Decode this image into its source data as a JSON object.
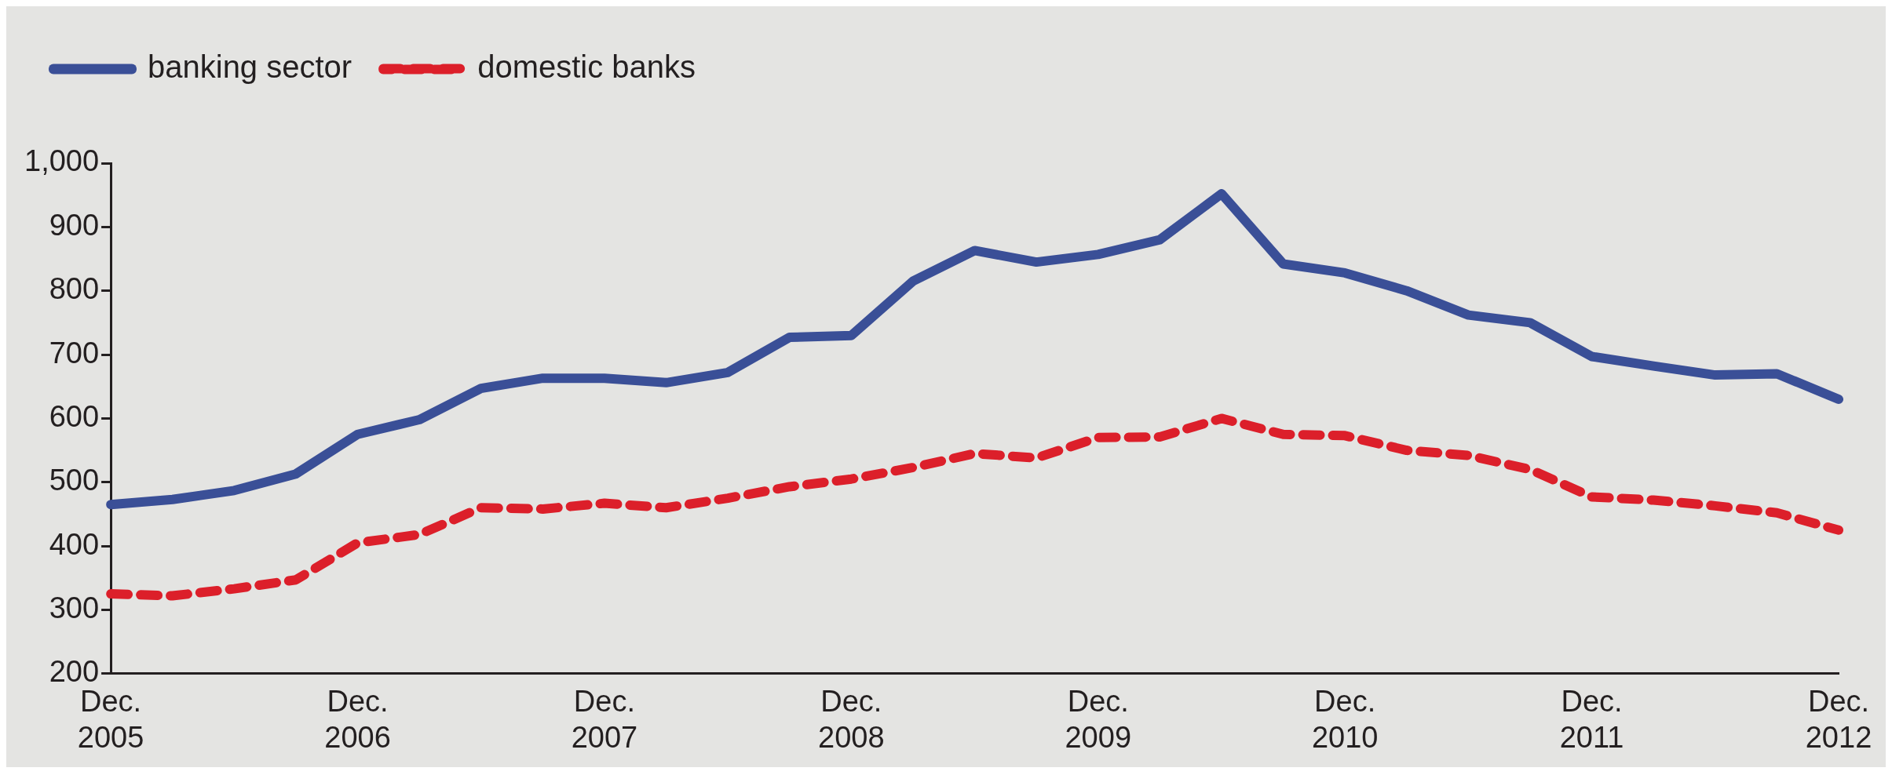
{
  "chart_data": {
    "type": "line",
    "categories": [
      "Dec. 2005",
      null,
      null,
      null,
      "Dec. 2006",
      null,
      null,
      null,
      "Dec. 2007",
      null,
      null,
      null,
      "Dec. 2008",
      null,
      null,
      null,
      "Dec. 2009",
      null,
      null,
      null,
      "Dec. 2010",
      null,
      null,
      null,
      "Dec. 2011",
      null,
      null,
      null,
      "Dec. 2012"
    ],
    "series": [
      {
        "name": "banking sector",
        "color": "#3a4f97",
        "line_style": "solid",
        "values": [
          465,
          473,
          487,
          513,
          575,
          598,
          647,
          663,
          663,
          656,
          672,
          727,
          730,
          815,
          863,
          845,
          857,
          880,
          952,
          842,
          828,
          800,
          762,
          750,
          697,
          682,
          668,
          670,
          630
        ]
      },
      {
        "name": "domestic banks",
        "color": "#dc1f2a",
        "line_style": "dashed",
        "values": [
          325,
          322,
          333,
          347,
          405,
          418,
          460,
          458,
          467,
          460,
          475,
          493,
          505,
          523,
          545,
          538,
          570,
          571,
          600,
          575,
          573,
          550,
          542,
          520,
          477,
          472,
          463,
          452,
          425
        ]
      }
    ],
    "ylim": [
      200,
      1000
    ],
    "yticks": [
      {
        "value": 200,
        "label": "200"
      },
      {
        "value": 300,
        "label": "300"
      },
      {
        "value": 400,
        "label": "400"
      },
      {
        "value": 500,
        "label": "500"
      },
      {
        "value": 600,
        "label": "600"
      },
      {
        "value": 700,
        "label": "700"
      },
      {
        "value": 800,
        "label": "800"
      },
      {
        "value": 900,
        "label": "900"
      },
      {
        "value": 1000,
        "label": "1,000"
      }
    ],
    "grid": false,
    "legend": "top left",
    "marker": "none"
  }
}
